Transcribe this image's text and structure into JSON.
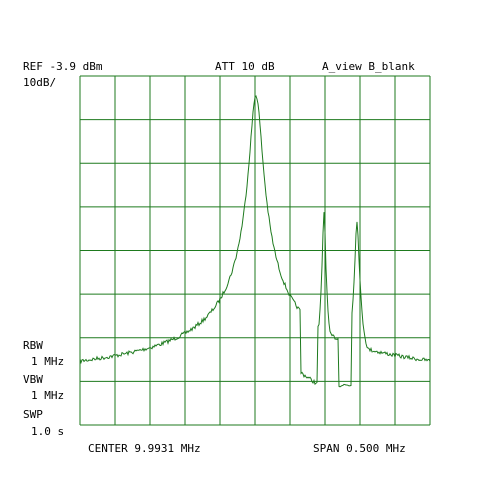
{
  "header": {
    "ref": "REF -3.9 dBm",
    "att": "ATT 10 dB",
    "view": "A_view B_blank",
    "scale": "10dB/"
  },
  "settings": {
    "rbw_label": "RBW",
    "rbw_value": "1 MHz",
    "vbw_label": "VBW",
    "vbw_value": "1 MHz",
    "swp_label": "SWP",
    "swp_value": "1.0 s"
  },
  "footer": {
    "center": "CENTER 9.9931 MHz",
    "span": "SPAN 0.500 MHz"
  },
  "colors": {
    "grid": "#1e7a1e",
    "trace": "#1e7a1e",
    "background": "#ffffff",
    "text": "#000000"
  }
}
